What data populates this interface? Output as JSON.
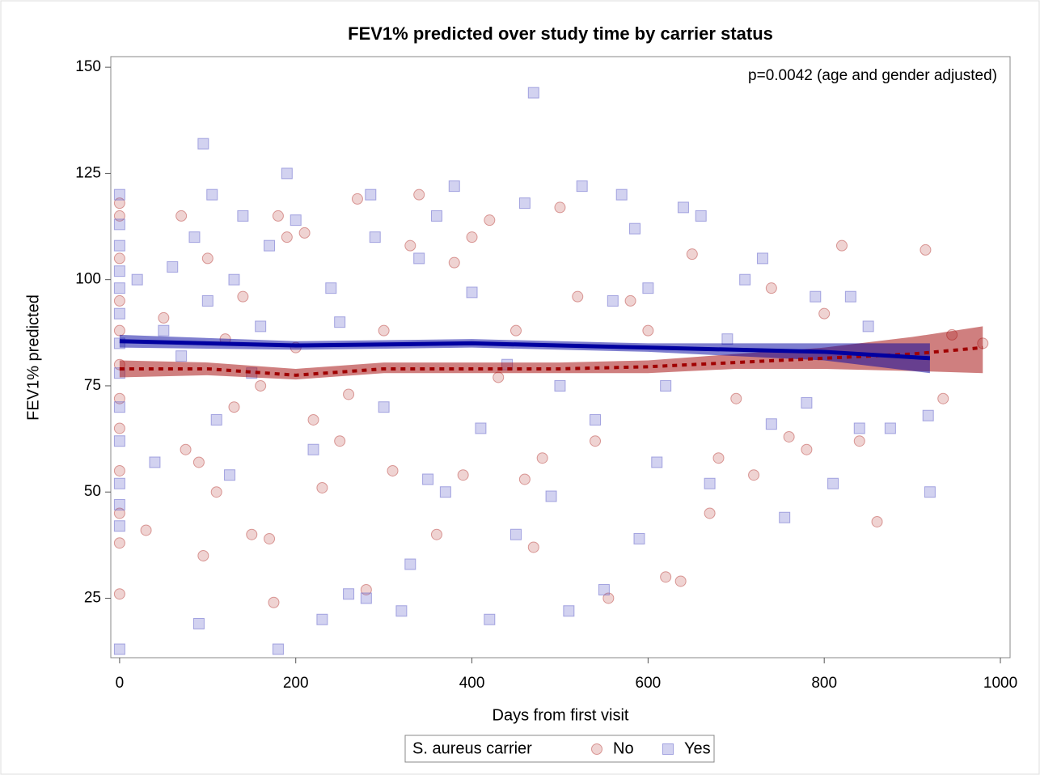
{
  "chart_data": {
    "type": "scatter",
    "title": "FEV1% predicted over study time by carrier status",
    "annotation": "p=0.0042 (age and gender adjusted)",
    "x_label": "Days from first visit",
    "y_label": "FEV1% predicted",
    "legend_title": "S. aureus carrier",
    "xlim": [
      -10,
      1011
    ],
    "ylim": [
      11,
      152.5
    ],
    "xticks": [
      0,
      200,
      400,
      600,
      800,
      1000
    ],
    "yticks": [
      25,
      50,
      75,
      100,
      125,
      150
    ],
    "legend": "bottom",
    "series": [
      {
        "name": "No",
        "color": "#c0504d",
        "marker": "circle",
        "x": [
          0,
          0,
          0,
          0,
          0,
          0,
          0,
          0,
          0,
          0,
          0,
          0,
          30,
          50,
          70,
          75,
          90,
          95,
          100,
          110,
          130,
          150,
          160,
          170,
          175,
          180,
          190,
          200,
          210,
          220,
          230,
          250,
          270,
          280,
          300,
          310,
          330,
          340,
          360,
          380,
          400,
          420,
          430,
          450,
          470,
          480,
          500,
          520,
          540,
          555,
          580,
          600,
          620,
          637,
          650,
          670,
          700,
          720,
          760,
          780,
          800,
          820,
          860,
          915,
          935,
          945,
          980,
          740,
          840,
          680,
          460,
          390,
          260,
          140,
          120
        ],
        "values": [
          118,
          115,
          105,
          95,
          88,
          80,
          72,
          65,
          55,
          45,
          38,
          26,
          41,
          91,
          115,
          60,
          57,
          35,
          105,
          50,
          70,
          40,
          75,
          39,
          24,
          115,
          110,
          84,
          111,
          67,
          51,
          62,
          119,
          27,
          88,
          55,
          108,
          120,
          40,
          104,
          110,
          114,
          77,
          88,
          37,
          58,
          117,
          96,
          62,
          25,
          95,
          88,
          30,
          29,
          106,
          45,
          72,
          54,
          63,
          60,
          92,
          108,
          43,
          107,
          72,
          87,
          85,
          98,
          62,
          58,
          53,
          54,
          73,
          96,
          86
        ]
      },
      {
        "name": "Yes",
        "color": "#6a6acc",
        "marker": "square",
        "x": [
          0,
          0,
          0,
          0,
          0,
          0,
          0,
          0,
          0,
          0,
          0,
          0,
          0,
          0,
          20,
          40,
          60,
          85,
          90,
          95,
          100,
          105,
          110,
          125,
          140,
          160,
          180,
          190,
          200,
          220,
          230,
          240,
          260,
          280,
          285,
          300,
          320,
          330,
          340,
          350,
          360,
          370,
          380,
          400,
          420,
          440,
          460,
          470,
          490,
          500,
          510,
          525,
          540,
          550,
          560,
          570,
          590,
          600,
          620,
          640,
          660,
          670,
          690,
          710,
          740,
          755,
          780,
          790,
          810,
          830,
          840,
          850,
          875,
          920,
          918,
          730,
          610,
          585,
          450,
          410,
          290,
          250,
          170,
          150,
          130,
          70,
          50
        ],
        "values": [
          120,
          113,
          108,
          102,
          98,
          92,
          85,
          78,
          70,
          62,
          52,
          47,
          42,
          13,
          100,
          57,
          103,
          110,
          19,
          132,
          95,
          120,
          67,
          54,
          115,
          89,
          13,
          125,
          114,
          60,
          20,
          98,
          26,
          25,
          120,
          70,
          22,
          33,
          105,
          53,
          115,
          50,
          122,
          97,
          20,
          80,
          118,
          144,
          49,
          75,
          22,
          122,
          67,
          27,
          95,
          120,
          39,
          98,
          75,
          117,
          115,
          52,
          86,
          100,
          66,
          44,
          71,
          96,
          52,
          96,
          65,
          89,
          65,
          50,
          68,
          105,
          57,
          112,
          40,
          65,
          110,
          90,
          108,
          78,
          100,
          82,
          88
        ]
      }
    ],
    "fits": [
      {
        "color": "#a00000",
        "style": "dotted",
        "x": [
          0,
          100,
          200,
          300,
          400,
          500,
          600,
          700,
          800,
          900,
          980
        ],
        "values": [
          79,
          79,
          77.5,
          79,
          79,
          79,
          79.5,
          80.5,
          81.5,
          82.5,
          84
        ],
        "lower": [
          77,
          77.5,
          76.5,
          78,
          78,
          78,
          78,
          79,
          79,
          78.5,
          78
        ],
        "upper": [
          81,
          80.5,
          79,
          80.5,
          80.5,
          80.5,
          81,
          82.5,
          84,
          86.5,
          89
        ]
      },
      {
        "color": "#0000a0",
        "style": "solid",
        "x": [
          0,
          200,
          400,
          600,
          800,
          920
        ],
        "values": [
          85.5,
          84.5,
          85,
          84,
          83,
          81.5
        ],
        "lower": [
          84,
          83.5,
          84,
          83,
          81,
          78
        ],
        "upper": [
          87,
          85.5,
          86,
          85,
          85,
          85
        ]
      }
    ]
  }
}
